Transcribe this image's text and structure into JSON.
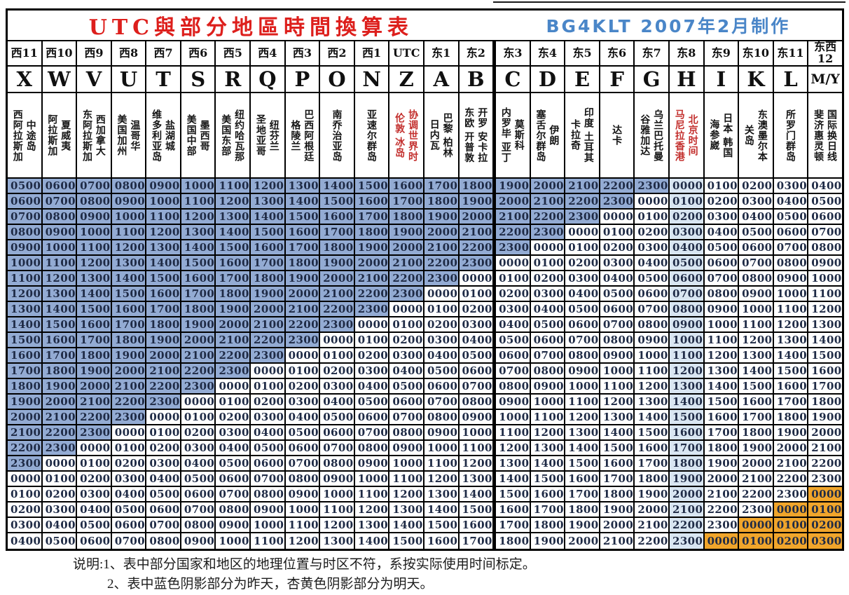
{
  "titles": {
    "main": "UTC與部分地區時間換算表",
    "credit": "BG4KLT 2007年2月制作"
  },
  "columns": [
    {
      "tz": "西11",
      "letter": "X",
      "location": "中途岛\n西阿拉斯加"
    },
    {
      "tz": "西10",
      "letter": "W",
      "location": "夏威夷\n阿拉斯加"
    },
    {
      "tz": "西9",
      "letter": "V",
      "location": "西加拿大\n东阿拉斯加"
    },
    {
      "tz": "西8",
      "letter": "U",
      "location": "温哥华\n美国加州"
    },
    {
      "tz": "西7",
      "letter": "T",
      "location": "盐湖城\n维多利亚岛"
    },
    {
      "tz": "西6",
      "letter": "S",
      "location": "墨西哥\n美国中部"
    },
    {
      "tz": "西5",
      "letter": "R",
      "location": "纽约哈瓦那\n美国东部"
    },
    {
      "tz": "西4",
      "letter": "Q",
      "location": "纽芬兰\n圣地亚哥"
    },
    {
      "tz": "西3",
      "letter": "P",
      "location": "巴西阿根廷\n格陵兰"
    },
    {
      "tz": "西2",
      "letter": "O",
      "location": "南乔治亚岛"
    },
    {
      "tz": "西1",
      "letter": "N",
      "location": "亚速尔群岛"
    },
    {
      "tz": "UTC",
      "letter": "Z",
      "location": "协调世界时\n伦敦 冰岛",
      "style": "utc"
    },
    {
      "tz": "东1",
      "letter": "A",
      "location": "巴黎 柏林\n日内瓦"
    },
    {
      "tz": "东2",
      "letter": "B",
      "location": "开罗 安卡拉\n东欧 开普敦"
    },
    {
      "tz": "东3",
      "letter": "C",
      "location": "莫斯科\n内罗毕 亚丁"
    },
    {
      "tz": "东4",
      "letter": "D",
      "location": "伊朗\n塞舌尔群岛"
    },
    {
      "tz": "东5",
      "letter": "E",
      "location": "印度 土耳其\n卡拉奇"
    },
    {
      "tz": "东6",
      "letter": "F",
      "location": "达卡"
    },
    {
      "tz": "东7",
      "letter": "G",
      "location": "乌兰巴托曼\n谷雅加达"
    },
    {
      "tz": "东8",
      "letter": "H",
      "location": "北京时间\n马尼拉香港",
      "style": "beijing"
    },
    {
      "tz": "东9",
      "letter": "I",
      "location": "日本 韩国\n海参崴"
    },
    {
      "tz": "东10",
      "letter": "K",
      "location": "东澳墨尔本\n关岛"
    },
    {
      "tz": "东11",
      "letter": "L",
      "location": "所罗门群岛"
    },
    {
      "tz": "东西\n12",
      "letter": "M/Y",
      "location": "国际换日线\n斐济惠灵顿"
    }
  ],
  "rows": [
    "0500 0600 0700 0800 0900 1000 1100 1200 1300 1400 1500 1600 1700 1800 1900 2000 2100 2200 2300 0000 0100 0200 0300 0400",
    "0600 0700 0800 0900 1000 1100 1200 1300 1400 1500 1600 1700 1800 1900 2000 2100 2200 2300 0000 0100 0200 0300 0400 0500",
    "0700 0800 0900 1000 1100 1200 1300 1400 1500 1600 1700 1800 1900 2000 2100 2200 2300 0000 0100 0200 0300 0400 0500 0600",
    "0800 0900 1000 1100 1200 1300 1400 1500 1600 1700 1800 1900 2000 2100 2200 2300 0000 0100 0200 0300 0400 0500 0600 0700",
    "0900 1000 1100 1200 1300 1400 1500 1600 1700 1800 1900 2000 2100 2200 2300 0000 0100 0200 0300 0400 0500 0600 0700 0800",
    "1000 1100 1200 1300 1400 1500 1600 1700 1800 1900 2000 2100 2200 2300 0000 0100 0200 0300 0400 0500 0600 0700 0800 0900",
    "1100 1200 1300 1400 1500 1600 1700 1800 1900 2000 2100 2200 2300 0000 0100 0200 0300 0400 0500 0600 0700 0800 0900 1000",
    "1200 1300 1400 1500 1600 1700 1800 1900 2000 2100 2200 2300 0000 0100 0200 0300 0400 0500 0600 0700 0800 0900 1000 1100",
    "1300 1400 1500 1600 1700 1800 1900 2000 2100 2200 2300 0000 0100 0200 0300 0400 0500 0600 0700 0800 0900 1000 1100 1200",
    "1400 1500 1600 1700 1800 1900 2000 2100 2200 2300 0000 0100 0200 0300 0400 0500 0600 0700 0800 0900 1000 1100 1200 1300",
    "1500 1600 1700 1800 1900 2000 2100 2200 2300 0000 0100 0200 0300 0400 0500 0600 0700 0800 0900 1000 1100 1200 1300 1400",
    "1600 1700 1800 1900 2000 2100 2200 2300 0000 0100 0200 0300 0400 0500 0600 0700 0800 0900 1000 1100 1200 1300 1400 1500",
    "1700 1800 1900 2000 2100 2200 2300 0000 0100 0200 0300 0400 0500 0600 0700 0800 0900 1000 1100 1200 1300 1400 1500 1600",
    "1800 1900 2000 2100 2200 2300 0000 0100 0200 0300 0400 0500 0600 0700 0800 0900 1000 1100 1200 1300 1400 1500 1600 1700",
    "1900 2000 2100 2200 2300 0000 0100 0200 0300 0400 0500 0600 0700 0800 0900 1000 1100 1200 1300 1400 1500 1600 1700 1800",
    "2000 2100 2200 2300 0000 0100 0200 0300 0400 0500 0600 0700 0800 0900 1000 1100 1200 1300 1400 1500 1600 1700 1800 1900",
    "2100 2200 2300 0000 0100 0200 0300 0400 0500 0600 0700 0800 0900 1000 1100 1200 1300 1400 1500 1600 1700 1800 1900 2000",
    "2200 2300 0000 0100 0200 0300 0400 0500 0600 0700 0800 0900 1000 1100 1200 1300 1400 1500 1600 1700 1800 1900 2000 2100",
    "2300 0000 0100 0200 0300 0400 0500 0600 0700 0800 0900 1000 1100 1200 1300 1400 1500 1600 1700 1800 1900 2000 2100 2200",
    "0000 0100 0200 0300 0400 0500 0600 0700 0800 0900 1000 1100 1200 1300 1400 1500 1600 1700 1800 1900 2000 2100 2200 2300",
    "0100 0200 0300 0400 0500 0600 0700 0800 0900 1000 1100 1200 1300 1400 1500 1600 1700 1800 1900 2000 2100 2200 2300 0000",
    "0200 0300 0400 0500 0600 0700 0800 0900 1000 1100 1200 1300 1400 1500 1600 1700 1800 1900 2000 2100 2200 2300 0000 0100",
    "0300 0400 0500 0600 0700 0800 0900 1000 1100 1200 1300 1400 1500 1600 1700 1800 1900 2000 2100 2200 2300 0000 0100 0200",
    "0400 0500 0600 0700 0800 0900 1000 1100 1200 1300 1400 1500 1600 1700 1800 1900 2000 2100 2200 2300 0000 0100 0200 0300"
  ],
  "notes": [
    "说明:1、表中部分国家和地区的地理位置与时区不符，系按实际使用时间标定。",
    "2、表中蓝色阴影部分为昨天，杏黄色阴影部分为明天。"
  ],
  "colors": {
    "yesterday_blue": "#93ABD3",
    "tomorrow_orange": "#F0A52B",
    "beijing_column_light_blue": "#D9E6F2",
    "utc_text_red": "#C3302E",
    "title_red": "#DD1F1C",
    "credit_blue": "#4A86C8"
  }
}
